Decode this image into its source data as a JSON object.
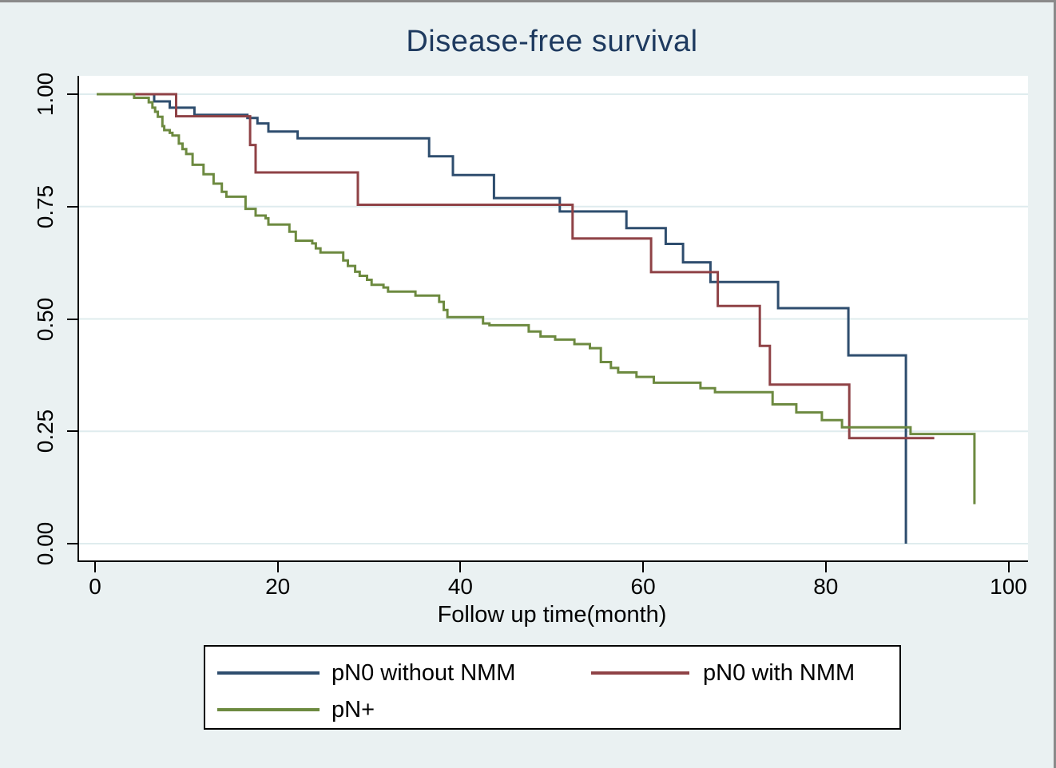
{
  "chart_data": {
    "type": "line",
    "style": "kaplan-meier-step-plot",
    "title": "Disease-free survival",
    "xlabel": "Follow up time(month)",
    "ylabel": "",
    "xlim": [
      0,
      100
    ],
    "ylim": [
      0.0,
      1.0
    ],
    "x_ticks": [
      0,
      20,
      40,
      60,
      80,
      100
    ],
    "y_tick_labels": [
      "1.00",
      "0.75",
      "0.50",
      "0.25",
      "0.00"
    ],
    "y_tick_values": [
      1.0,
      0.75,
      0.5,
      0.25,
      0.0
    ],
    "grid": "horizontal gridlines at y ticks",
    "legend_position": "bottom",
    "series": [
      {
        "name": "pN0 without NMM",
        "color": "#2e4d6e",
        "steps": [
          [
            0,
            1.0
          ],
          [
            6.3,
            0.984
          ],
          [
            8,
            0.97
          ],
          [
            10.7,
            0.954
          ],
          [
            16.5,
            0.947
          ],
          [
            17.6,
            0.935
          ],
          [
            18.8,
            0.917
          ],
          [
            22,
            0.902
          ],
          [
            36.4,
            0.862
          ],
          [
            39,
            0.82
          ],
          [
            43.5,
            0.769
          ],
          [
            50.7,
            0.739
          ],
          [
            58,
            0.702
          ],
          [
            62.3,
            0.667
          ],
          [
            64.2,
            0.626
          ],
          [
            67.2,
            0.582
          ],
          [
            74.6,
            0.524
          ],
          [
            82.3,
            0.419
          ],
          [
            88.6,
            0.0
          ]
        ]
      },
      {
        "name": "pN0 with NMM",
        "color": "#8f4246",
        "steps": [
          [
            0,
            1.0
          ],
          [
            8.7,
            0.951
          ],
          [
            16.8,
            0.887
          ],
          [
            17.4,
            0.826
          ],
          [
            28.6,
            0.754
          ],
          [
            52.1,
            0.679
          ],
          [
            60.7,
            0.604
          ],
          [
            68,
            0.529
          ],
          [
            72.6,
            0.44
          ],
          [
            73.7,
            0.354
          ],
          [
            82.4,
            0.235
          ],
          [
            91.7,
            0.235
          ]
        ]
      },
      {
        "name": "pN+",
        "color": "#6d8a40",
        "steps": [
          [
            0,
            1.0
          ],
          [
            4.1,
            0.992
          ],
          [
            5.7,
            0.982
          ],
          [
            6.1,
            0.97
          ],
          [
            6.4,
            0.961
          ],
          [
            6.7,
            0.95
          ],
          [
            7.2,
            0.929
          ],
          [
            7.4,
            0.92
          ],
          [
            8,
            0.914
          ],
          [
            8.3,
            0.908
          ],
          [
            9,
            0.89
          ],
          [
            9.4,
            0.878
          ],
          [
            9.8,
            0.867
          ],
          [
            10.5,
            0.843
          ],
          [
            11.7,
            0.822
          ],
          [
            12.8,
            0.801
          ],
          [
            13.7,
            0.783
          ],
          [
            14.2,
            0.772
          ],
          [
            16.3,
            0.745
          ],
          [
            17.4,
            0.73
          ],
          [
            18.5,
            0.724
          ],
          [
            18.8,
            0.71
          ],
          [
            21.1,
            0.694
          ],
          [
            21.8,
            0.674
          ],
          [
            23.6,
            0.668
          ],
          [
            24,
            0.657
          ],
          [
            24.5,
            0.648
          ],
          [
            27,
            0.63
          ],
          [
            27.5,
            0.618
          ],
          [
            28.3,
            0.605
          ],
          [
            28.8,
            0.596
          ],
          [
            29.6,
            0.587
          ],
          [
            30.1,
            0.576
          ],
          [
            31.4,
            0.57
          ],
          [
            31.9,
            0.561
          ],
          [
            34.9,
            0.552
          ],
          [
            37.5,
            0.538
          ],
          [
            38,
            0.52
          ],
          [
            38.4,
            0.504
          ],
          [
            42.3,
            0.49
          ],
          [
            43,
            0.486
          ],
          [
            47.3,
            0.472
          ],
          [
            48.6,
            0.461
          ],
          [
            50.2,
            0.454
          ],
          [
            52.3,
            0.444
          ],
          [
            54,
            0.435
          ],
          [
            55.2,
            0.404
          ],
          [
            56.3,
            0.391
          ],
          [
            57.1,
            0.381
          ],
          [
            59.1,
            0.371
          ],
          [
            61,
            0.358
          ],
          [
            66.1,
            0.346
          ],
          [
            67.7,
            0.337
          ],
          [
            74,
            0.31
          ],
          [
            76.6,
            0.292
          ],
          [
            79.4,
            0.275
          ],
          [
            81.6,
            0.259
          ],
          [
            89.1,
            0.244
          ],
          [
            96.1,
            0.088
          ]
        ]
      }
    ]
  },
  "colors": {
    "background": "#eaf1f2",
    "plot_background": "#ffffff",
    "gridline": "#dfecee",
    "axis": "#000000",
    "title": "#1e3a5f",
    "frame_border": "#8a8a8a",
    "legend_border": "#000000",
    "legend_background": "#ffffff",
    "text": "#000000"
  }
}
